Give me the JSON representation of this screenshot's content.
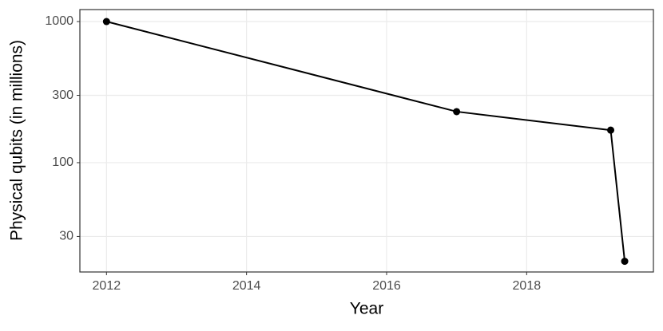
{
  "chart_data": {
    "type": "line",
    "x_label": "Year",
    "y_label": "Physical qubits (in millions)",
    "x": [
      2012,
      2017,
      2019.2,
      2019.4
    ],
    "values": [
      1000,
      230,
      170,
      20
    ],
    "color": "#000000",
    "xlim": [
      2011.62,
      2019.81
    ],
    "xticks": [
      2012,
      2014,
      2016,
      2018
    ],
    "ylim": [
      16.8,
      1216
    ],
    "yticks": [
      30,
      100,
      300,
      1000
    ],
    "log_y": true,
    "grid": true
  }
}
